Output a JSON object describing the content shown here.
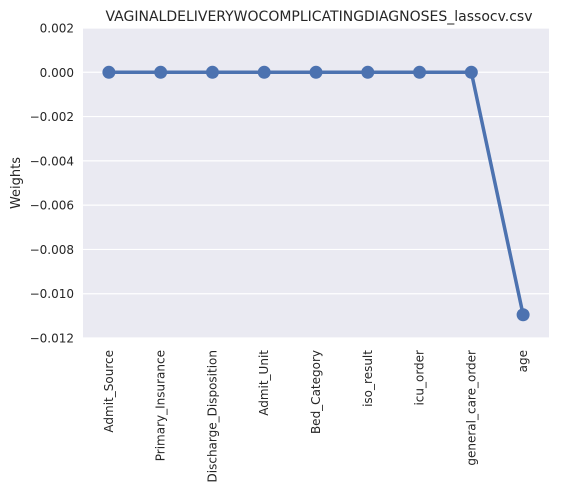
{
  "chart_data": {
    "type": "line",
    "title": "VAGINALDELIVERYWOCOMPLICATINGDIAGNOSES_lassocv.csv",
    "xlabel": "",
    "ylabel": "Weights",
    "categories": [
      "Admit_Source",
      "Primary_Insurance",
      "Discharge_Disposition",
      "Admit_Unit",
      "Bed_Category",
      "iso_result",
      "icu_order",
      "general_care_order",
      "age"
    ],
    "values": [
      0.0,
      0.0,
      0.0,
      0.0,
      0.0,
      0.0,
      0.0,
      0.0,
      -0.01095
    ],
    "ylim": [
      -0.012,
      0.002
    ],
    "yticks": [
      "0.002",
      "0.000",
      "−0.002",
      "−0.004",
      "−0.006",
      "−0.008",
      "−0.010",
      "−0.012"
    ],
    "ytick_values": [
      0.002,
      0.0,
      -0.002,
      -0.004,
      -0.006,
      -0.008,
      -0.01,
      -0.012
    ],
    "grid": true,
    "colors": {
      "series": "#4c72b0",
      "background": "#eaeaf2",
      "grid": "#ffffff"
    }
  }
}
